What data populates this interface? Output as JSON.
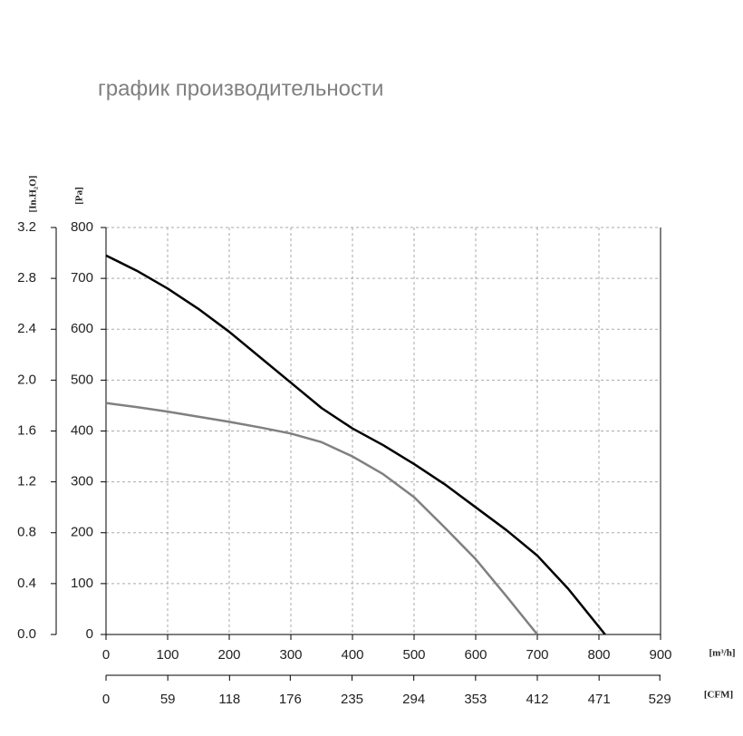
{
  "chart_data": {
    "type": "line",
    "title": "график производительности",
    "x_label": "[m³/h]",
    "x2_label": "[CFM]",
    "y_label": "[Pa]",
    "y2_label": "[In.H₂O]",
    "x": [
      0,
      50,
      100,
      150,
      200,
      250,
      300,
      350,
      400,
      450,
      500,
      550,
      600,
      650,
      700,
      750,
      800,
      810
    ],
    "series": [
      {
        "color": "#000000",
        "values": [
          745,
          715,
          680,
          640,
          595,
          545,
          495,
          445,
          405,
          372,
          335,
          295,
          250,
          205,
          155,
          90,
          15,
          0
        ]
      },
      {
        "color": "#808080",
        "values": [
          455,
          447,
          438,
          428,
          418,
          407,
          395,
          378,
          350,
          315,
          270,
          210,
          148,
          75,
          0,
          null,
          null,
          null
        ]
      }
    ],
    "xlim": [
      0,
      900
    ],
    "xticks": [
      0,
      100,
      200,
      300,
      400,
      500,
      600,
      700,
      800,
      900
    ],
    "x2lim": [
      0,
      529.7
    ],
    "x2ticks": [
      0,
      59,
      118,
      176,
      235,
      294,
      353,
      412,
      471,
      529
    ],
    "ylim": [
      0,
      800
    ],
    "yticks": [
      0,
      100,
      200,
      300,
      400,
      500,
      600,
      700,
      800
    ],
    "y2lim": [
      0,
      3.2
    ],
    "y2ticks": [
      {
        "value": 0,
        "label": "0.0"
      },
      0.4,
      0.8,
      1.2,
      1.6,
      {
        "value": 2,
        "label": "2.0"
      },
      2.4,
      2.8,
      3.2
    ],
    "grid": true
  }
}
